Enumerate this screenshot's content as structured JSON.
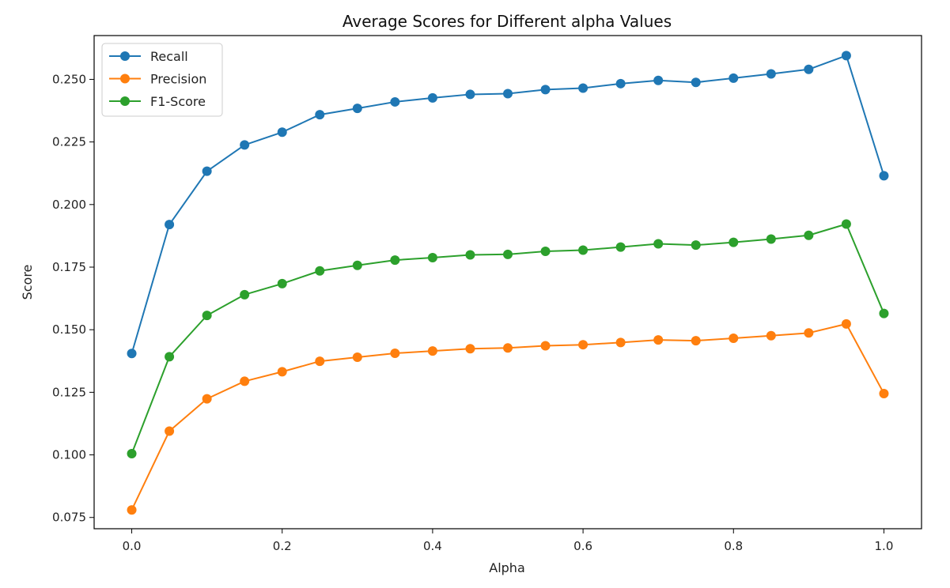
{
  "chart_data": {
    "type": "line",
    "title": "Average Scores for Different alpha Values",
    "xlabel": "Alpha",
    "ylabel": "Score",
    "xlim": [
      -0.05,
      1.05
    ],
    "ylim": [
      0.0705,
      0.2675
    ],
    "x_ticks": [
      0.0,
      0.2,
      0.4,
      0.6,
      0.8,
      1.0
    ],
    "x_tick_labels": [
      "0.0",
      "0.2",
      "0.4",
      "0.6",
      "0.8",
      "1.0"
    ],
    "y_ticks": [
      0.075,
      0.1,
      0.125,
      0.15,
      0.175,
      0.2,
      0.225,
      0.25
    ],
    "y_tick_labels": [
      "0.075",
      "0.100",
      "0.125",
      "0.150",
      "0.175",
      "0.200",
      "0.225",
      "0.250"
    ],
    "grid": false,
    "legend_position": "top-left",
    "x": [
      0.0,
      0.05,
      0.1,
      0.15,
      0.2,
      0.25,
      0.3,
      0.35,
      0.4,
      0.45,
      0.5,
      0.55,
      0.6,
      0.65,
      0.7,
      0.75,
      0.8,
      0.85,
      0.9,
      0.95,
      1.0
    ],
    "series": [
      {
        "name": "Recall",
        "color": "#1f77b4",
        "values": [
          0.1405,
          0.192,
          0.2133,
          0.2238,
          0.2289,
          0.2359,
          0.2384,
          0.241,
          0.2426,
          0.244,
          0.2443,
          0.2459,
          0.2465,
          0.2483,
          0.2496,
          0.2488,
          0.2505,
          0.2522,
          0.254,
          0.2595,
          0.2115
        ]
      },
      {
        "name": "Precision",
        "color": "#ff7f0e",
        "values": [
          0.078,
          0.1095,
          0.1224,
          0.1294,
          0.1332,
          0.1374,
          0.139,
          0.1406,
          0.1415,
          0.1424,
          0.1427,
          0.1436,
          0.144,
          0.1449,
          0.1459,
          0.1456,
          0.1466,
          0.1476,
          0.1487,
          0.1523,
          0.1245
        ]
      },
      {
        "name": "F1-Score",
        "color": "#2ca02c",
        "values": [
          0.1005,
          0.1392,
          0.1557,
          0.164,
          0.1684,
          0.1735,
          0.1757,
          0.1778,
          0.1788,
          0.1799,
          0.1801,
          0.1813,
          0.1818,
          0.183,
          0.1843,
          0.1838,
          0.1849,
          0.1862,
          0.1877,
          0.1922,
          0.1565
        ]
      }
    ]
  }
}
